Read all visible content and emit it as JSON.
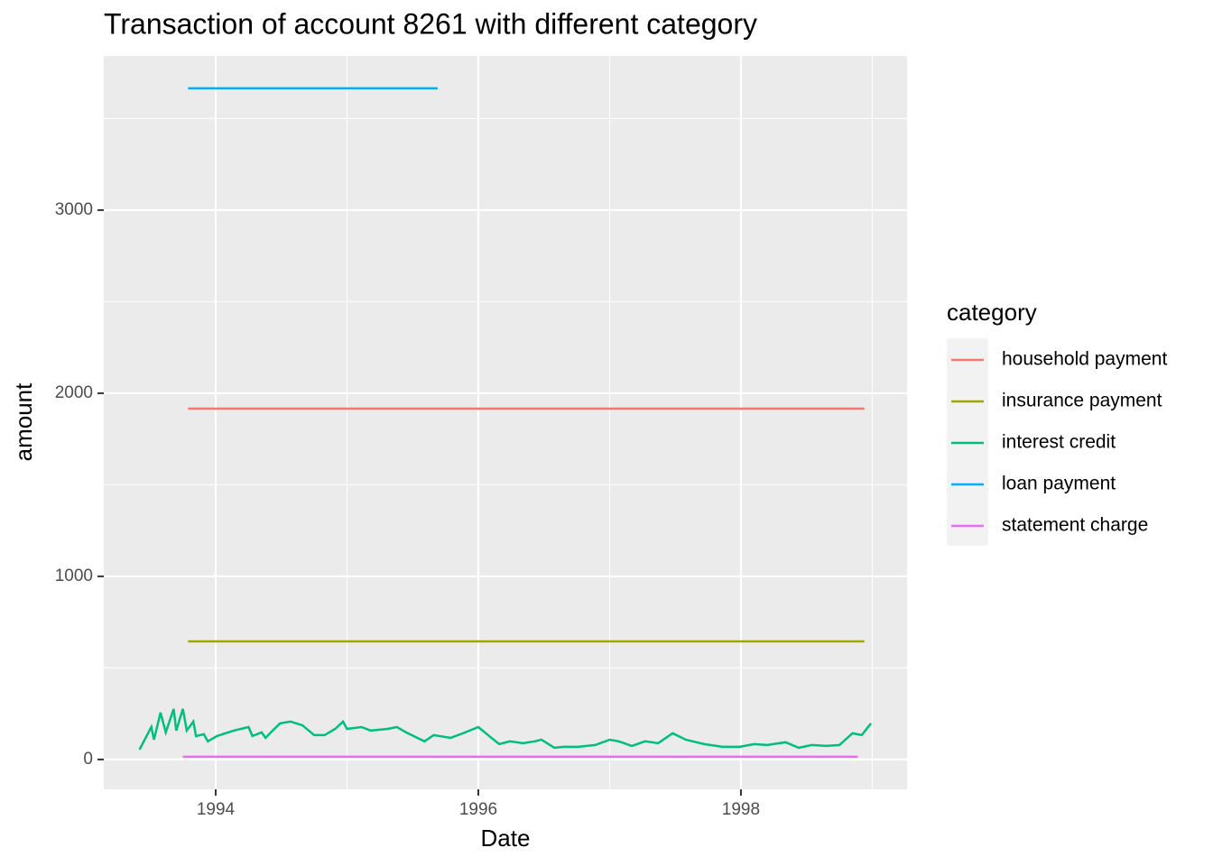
{
  "chart_data": {
    "type": "line",
    "title": "Transaction of account 8261 with different category",
    "x_label": "Date",
    "y_label": "amount",
    "legend_title": "category",
    "legend_position": "right",
    "grid": true,
    "xlim": [
      1993.148,
      1999.265
    ],
    "xticks": [
      1994,
      1996,
      1998
    ],
    "ylim": [
      -163,
      3842
    ],
    "yticks": [
      0,
      1000,
      2000,
      3000
    ],
    "series": [
      {
        "name": "household payment",
        "color": "#F8766D",
        "x": [
          1993.79,
          1998.94
        ],
        "values": [
          1916,
          1916
        ]
      },
      {
        "name": "insurance payment",
        "color": "#A3A500",
        "x": [
          1993.79,
          1998.94
        ],
        "values": [
          645,
          645
        ]
      },
      {
        "name": "interest credit",
        "color": "#00BF7D",
        "x": [
          1993.42,
          1993.51,
          1993.53,
          1993.58,
          1993.62,
          1993.68,
          1993.7,
          1993.75,
          1993.78,
          1993.83,
          1993.85,
          1993.91,
          1993.94,
          1994.01,
          1994.14,
          1994.25,
          1994.28,
          1994.35,
          1994.38,
          1994.42,
          1994.49,
          1994.57,
          1994.66,
          1994.75,
          1994.83,
          1994.91,
          1994.97,
          1995.0,
          1995.11,
          1995.18,
          1995.31,
          1995.38,
          1995.45,
          1995.59,
          1995.66,
          1995.79,
          1995.9,
          1996.0,
          1996.1,
          1996.16,
          1996.24,
          1996.34,
          1996.43,
          1996.48,
          1996.58,
          1996.65,
          1996.76,
          1996.89,
          1997.0,
          1997.07,
          1997.17,
          1997.27,
          1997.37,
          1997.48,
          1997.58,
          1997.72,
          1997.86,
          1997.99,
          1998.1,
          1998.2,
          1998.34,
          1998.44,
          1998.54,
          1998.65,
          1998.75,
          1998.85,
          1998.92,
          1998.99
        ],
        "values": [
          54,
          177,
          108,
          256,
          148,
          276,
          158,
          276,
          158,
          207,
          128,
          138,
          99,
          128,
          158,
          177,
          128,
          148,
          118,
          148,
          197,
          207,
          187,
          133,
          133,
          167,
          207,
          167,
          177,
          158,
          167,
          177,
          148,
          99,
          133,
          118,
          148,
          177,
          118,
          84,
          99,
          89,
          99,
          108,
          64,
          69,
          69,
          79,
          108,
          99,
          74,
          99,
          89,
          143,
          108,
          84,
          69,
          69,
          84,
          79,
          94,
          64,
          79,
          74,
          79,
          143,
          133,
          197
        ]
      },
      {
        "name": "loan payment",
        "color": "#00B0F6",
        "x": [
          1993.79,
          1995.69
        ],
        "values": [
          3665,
          3665
        ]
      },
      {
        "name": "statement charge",
        "color": "#E76BF3",
        "x": [
          1993.75,
          1998.89
        ],
        "values": [
          15,
          15
        ]
      }
    ]
  }
}
